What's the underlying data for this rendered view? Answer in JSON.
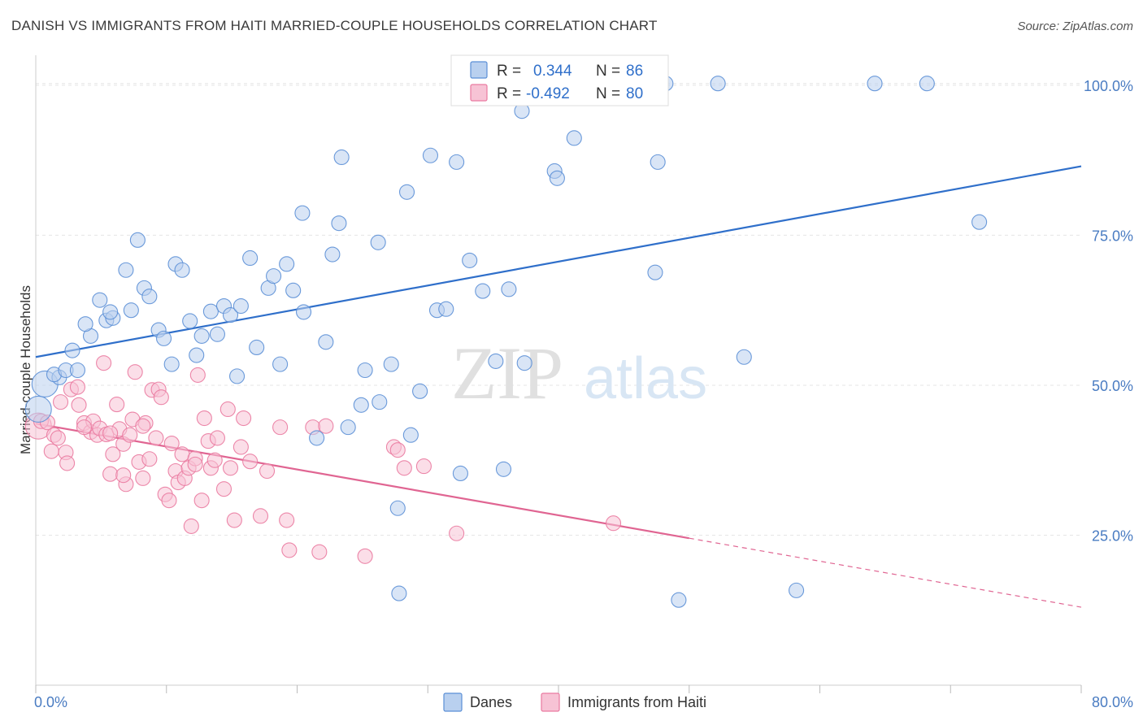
{
  "title": "DANISH VS IMMIGRANTS FROM HAITI MARRIED-COUPLE HOUSEHOLDS CORRELATION CHART",
  "source": "Source: ZipAtlas.com",
  "watermark": {
    "zip": "ZIP",
    "atlas": "atlas"
  },
  "colors": {
    "danes": "#5b8fd6",
    "danes_fill": "#b9d0ef",
    "danes_line": "#2f6fca",
    "haiti": "#ea7aa0",
    "haiti_fill": "#f7c3d5",
    "haiti_line": "#e06592",
    "axis_text": "#4a7cc2",
    "grid": "#e5e5e5"
  },
  "legend": {
    "rows": [
      {
        "r_label": "R =",
        "r_value": "0.344",
        "n_label": "N =",
        "n_value": "86"
      },
      {
        "r_label": "R =",
        "r_value": "-0.492",
        "n_label": "N =",
        "n_value": "80"
      }
    ]
  },
  "chart_data": {
    "type": "scatter",
    "title": "DANISH VS IMMIGRANTS FROM HAITI MARRIED-COUPLE HOUSEHOLDS CORRELATION CHART",
    "xlabel": "",
    "ylabel": "Married-couple Households",
    "xlim": [
      0,
      80
    ],
    "ylim": [
      0,
      105
    ],
    "x_tick_labels": [
      "0.0%",
      "80.0%"
    ],
    "y_ticks": [
      25,
      50,
      75,
      100
    ],
    "y_tick_labels": [
      "25.0%",
      "50.0%",
      "75.0%",
      "100.0%"
    ],
    "grid": true,
    "legend_position": "top-center",
    "bottom_legend": [
      "Danes",
      "Immigrants from Haiti"
    ],
    "series": [
      {
        "name": "Danes",
        "r": 0.344,
        "n": 86,
        "trend": {
          "x0": 0,
          "y0": 54.7,
          "x1": 80,
          "y1": 86.5
        },
        "points": [
          [
            0.2,
            46,
            "large"
          ],
          [
            0.7,
            50.2,
            "large"
          ],
          [
            1.8,
            51.3
          ],
          [
            1.4,
            51.8
          ],
          [
            2.3,
            52.5
          ],
          [
            3.2,
            52.5
          ],
          [
            2.8,
            55.8
          ],
          [
            4.2,
            58.2
          ],
          [
            3.8,
            60.2
          ],
          [
            4.9,
            64.2
          ],
          [
            5.4,
            60.8
          ],
          [
            5.9,
            61.2
          ],
          [
            5.7,
            62.2
          ],
          [
            7.3,
            62.5
          ],
          [
            6.9,
            69.2
          ],
          [
            7.8,
            74.2
          ],
          [
            8.3,
            66.2
          ],
          [
            8.7,
            64.8
          ],
          [
            9.4,
            59.2
          ],
          [
            9.8,
            57.8
          ],
          [
            10.4,
            53.5
          ],
          [
            10.7,
            70.2
          ],
          [
            11.2,
            69.2
          ],
          [
            11.8,
            60.7
          ],
          [
            12.3,
            55.0
          ],
          [
            12.7,
            58.2
          ],
          [
            13.4,
            62.3
          ],
          [
            13.9,
            58.5
          ],
          [
            14.4,
            63.2
          ],
          [
            14.9,
            61.7
          ],
          [
            15.4,
            51.5
          ],
          [
            15.7,
            63.2
          ],
          [
            16.4,
            71.2
          ],
          [
            16.9,
            56.3
          ],
          [
            17.8,
            66.2
          ],
          [
            18.2,
            68.2
          ],
          [
            18.7,
            53.5
          ],
          [
            19.2,
            70.2
          ],
          [
            19.7,
            65.8
          ],
          [
            20.5,
            62.2
          ],
          [
            20.4,
            78.7
          ],
          [
            21.5,
            41.2
          ],
          [
            22.2,
            57.2
          ],
          [
            22.7,
            71.8
          ],
          [
            23.2,
            77.0
          ],
          [
            23.4,
            88.0
          ],
          [
            23.9,
            43.0
          ],
          [
            24.9,
            46.7
          ],
          [
            25.2,
            52.5
          ],
          [
            26.2,
            73.8
          ],
          [
            26.3,
            47.2
          ],
          [
            27.2,
            53.5
          ],
          [
            27.7,
            29.5
          ],
          [
            27.8,
            15.3
          ],
          [
            28.4,
            82.2
          ],
          [
            28.7,
            41.7
          ],
          [
            29.4,
            49.0
          ],
          [
            30.2,
            88.3
          ],
          [
            30.7,
            62.5
          ],
          [
            31.4,
            62.7
          ],
          [
            32.2,
            87.2
          ],
          [
            32.5,
            35.3
          ],
          [
            33.2,
            70.8
          ],
          [
            34.2,
            65.7
          ],
          [
            35.2,
            54.0
          ],
          [
            36.2,
            66.0
          ],
          [
            37.2,
            95.7
          ],
          [
            37.4,
            53.7
          ],
          [
            38.2,
            100.3
          ],
          [
            39.7,
            85.7
          ],
          [
            39.9,
            84.5
          ],
          [
            41.2,
            91.2
          ],
          [
            43.3,
            100.3
          ],
          [
            45.2,
            100.3
          ],
          [
            47.4,
            68.8
          ],
          [
            47.6,
            87.2
          ],
          [
            48.2,
            100.3
          ],
          [
            49.2,
            14.2
          ],
          [
            52.2,
            100.3
          ],
          [
            54.2,
            54.7
          ],
          [
            58.2,
            15.8
          ],
          [
            64.2,
            100.3
          ],
          [
            68.2,
            100.3
          ],
          [
            72.2,
            77.2
          ],
          [
            35.8,
            36.0
          ]
        ]
      },
      {
        "name": "Immigrants from Haiti",
        "r": -0.492,
        "n": 80,
        "trend": {
          "x0": 0,
          "y0": 43.6,
          "x1": 50,
          "y1": 24.5,
          "dashed_x1": 80,
          "dashed_y1": 13.0
        },
        "points": [
          [
            0.2,
            43.2,
            "large"
          ],
          [
            0.4,
            44.0
          ],
          [
            0.9,
            43.8
          ],
          [
            1.2,
            39.0
          ],
          [
            1.4,
            41.7
          ],
          [
            1.7,
            41.2
          ],
          [
            1.9,
            47.2
          ],
          [
            2.3,
            38.8
          ],
          [
            2.4,
            37.0
          ],
          [
            2.7,
            49.3
          ],
          [
            3.2,
            49.7
          ],
          [
            3.3,
            46.7
          ],
          [
            3.7,
            43.7
          ],
          [
            4.2,
            42.2
          ],
          [
            4.4,
            44.0
          ],
          [
            4.7,
            41.7
          ],
          [
            4.9,
            42.8
          ],
          [
            5.2,
            53.7
          ],
          [
            5.4,
            41.8
          ],
          [
            5.7,
            35.2
          ],
          [
            5.9,
            38.5
          ],
          [
            6.2,
            46.8
          ],
          [
            6.4,
            42.7
          ],
          [
            6.7,
            40.2
          ],
          [
            6.9,
            33.5
          ],
          [
            7.2,
            41.7
          ],
          [
            7.4,
            44.3
          ],
          [
            7.6,
            52.2
          ],
          [
            7.9,
            37.2
          ],
          [
            8.2,
            34.5
          ],
          [
            8.4,
            43.7
          ],
          [
            8.7,
            37.7
          ],
          [
            8.9,
            49.2
          ],
          [
            9.2,
            41.2
          ],
          [
            9.4,
            49.3
          ],
          [
            9.6,
            48.0
          ],
          [
            9.9,
            31.8
          ],
          [
            10.2,
            30.8
          ],
          [
            10.4,
            40.3
          ],
          [
            10.7,
            35.7
          ],
          [
            10.9,
            33.8
          ],
          [
            11.2,
            38.5
          ],
          [
            11.4,
            34.5
          ],
          [
            11.7,
            36.2
          ],
          [
            11.9,
            26.5
          ],
          [
            12.2,
            37.8
          ],
          [
            12.4,
            51.7
          ],
          [
            12.7,
            30.8
          ],
          [
            12.9,
            44.5
          ],
          [
            13.2,
            40.7
          ],
          [
            13.4,
            36.2
          ],
          [
            13.7,
            37.5
          ],
          [
            13.9,
            41.2
          ],
          [
            14.4,
            32.7
          ],
          [
            14.7,
            46.0
          ],
          [
            14.9,
            36.2
          ],
          [
            15.7,
            39.7
          ],
          [
            15.9,
            44.5
          ],
          [
            16.4,
            37.3
          ],
          [
            17.2,
            28.2
          ],
          [
            17.7,
            35.7
          ],
          [
            18.7,
            43.0
          ],
          [
            19.2,
            27.5
          ],
          [
            19.4,
            22.5
          ],
          [
            21.2,
            43.0
          ],
          [
            21.7,
            22.2
          ],
          [
            22.2,
            43.2
          ],
          [
            25.2,
            21.5
          ],
          [
            27.4,
            39.7
          ],
          [
            27.7,
            39.2
          ],
          [
            28.2,
            36.2
          ],
          [
            29.7,
            36.5
          ],
          [
            32.2,
            25.3
          ],
          [
            44.2,
            27.0
          ],
          [
            15.2,
            27.5
          ],
          [
            6.7,
            35.0
          ],
          [
            12.2,
            36.8
          ],
          [
            3.7,
            43.0
          ],
          [
            5.7,
            42.0
          ],
          [
            8.2,
            43.2
          ]
        ]
      }
    ]
  }
}
